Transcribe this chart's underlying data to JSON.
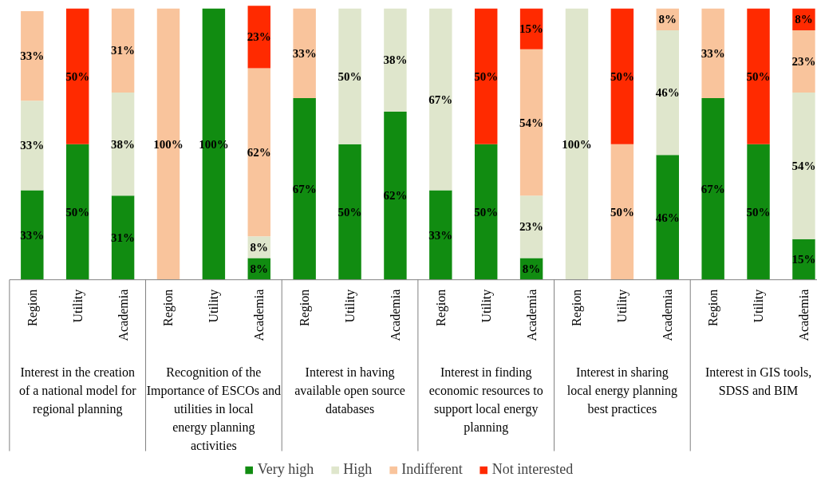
{
  "chart_data": {
    "type": "bar",
    "stacked": true,
    "legend": "bottom",
    "categories": [
      "Region",
      "Utility",
      "Academia",
      "Region",
      "Utility",
      "Academia",
      "Region",
      "Utility",
      "Academia",
      "Region",
      "Utility",
      "Academia",
      "Region",
      "Utility",
      "Academia",
      "Region",
      "Utility",
      "Academia"
    ],
    "annotations": [
      "Interest in the creation of a national model for regional planning",
      "Recognition of the Importance of ESCOs and utilities in local energy planning activities",
      "Interest in having available open source databases",
      "Interest in finding economic resources to support local energy planning",
      "Interest in sharing local energy planning best practices",
      "Interest in GIS tools, SDSS and BIM"
    ],
    "series": [
      {
        "name": "Very high",
        "color": "#118c11",
        "values": [
          33,
          50,
          31,
          null,
          100,
          8,
          67,
          50,
          62,
          33,
          50,
          8,
          null,
          null,
          46,
          67,
          50,
          15
        ],
        "value_labels": [
          "33%",
          "50%",
          "31%",
          null,
          "100%",
          "8%",
          "67%",
          "50%",
          "62%",
          "33%",
          "50%",
          "8%",
          null,
          null,
          "46%",
          "67%",
          "50%",
          "15%"
        ]
      },
      {
        "name": "High",
        "color": "#dfe6cc",
        "values": [
          33,
          null,
          38,
          null,
          null,
          8,
          null,
          50,
          38,
          67,
          null,
          23,
          100,
          null,
          46,
          null,
          null,
          54
        ],
        "value_labels": [
          "33%",
          null,
          "38%",
          null,
          null,
          "8%",
          null,
          "50%",
          "38%",
          "67%",
          null,
          "23%",
          "100%",
          null,
          "46%",
          null,
          null,
          "54%"
        ]
      },
      {
        "name": "Indifferent",
        "color": "#f9c49c",
        "values": [
          33,
          null,
          31,
          100,
          null,
          62,
          33,
          null,
          null,
          null,
          null,
          54,
          null,
          50,
          8,
          33,
          null,
          23
        ],
        "value_labels": [
          "33%",
          null,
          "31%",
          "100%",
          null,
          "62%",
          "33%",
          null,
          null,
          null,
          null,
          "54%",
          null,
          "50%",
          "8%",
          "33%",
          null,
          "23%"
        ]
      },
      {
        "name": "Not interested",
        "color": "#ff2a00",
        "values": [
          null,
          50,
          null,
          null,
          null,
          23,
          null,
          null,
          null,
          null,
          50,
          15,
          null,
          50,
          null,
          null,
          50,
          8
        ],
        "value_labels": [
          null,
          "50%",
          null,
          null,
          null,
          "23%",
          null,
          null,
          null,
          null,
          "50%",
          "15%",
          null,
          "50%",
          null,
          null,
          "50%",
          "8%"
        ]
      }
    ]
  }
}
